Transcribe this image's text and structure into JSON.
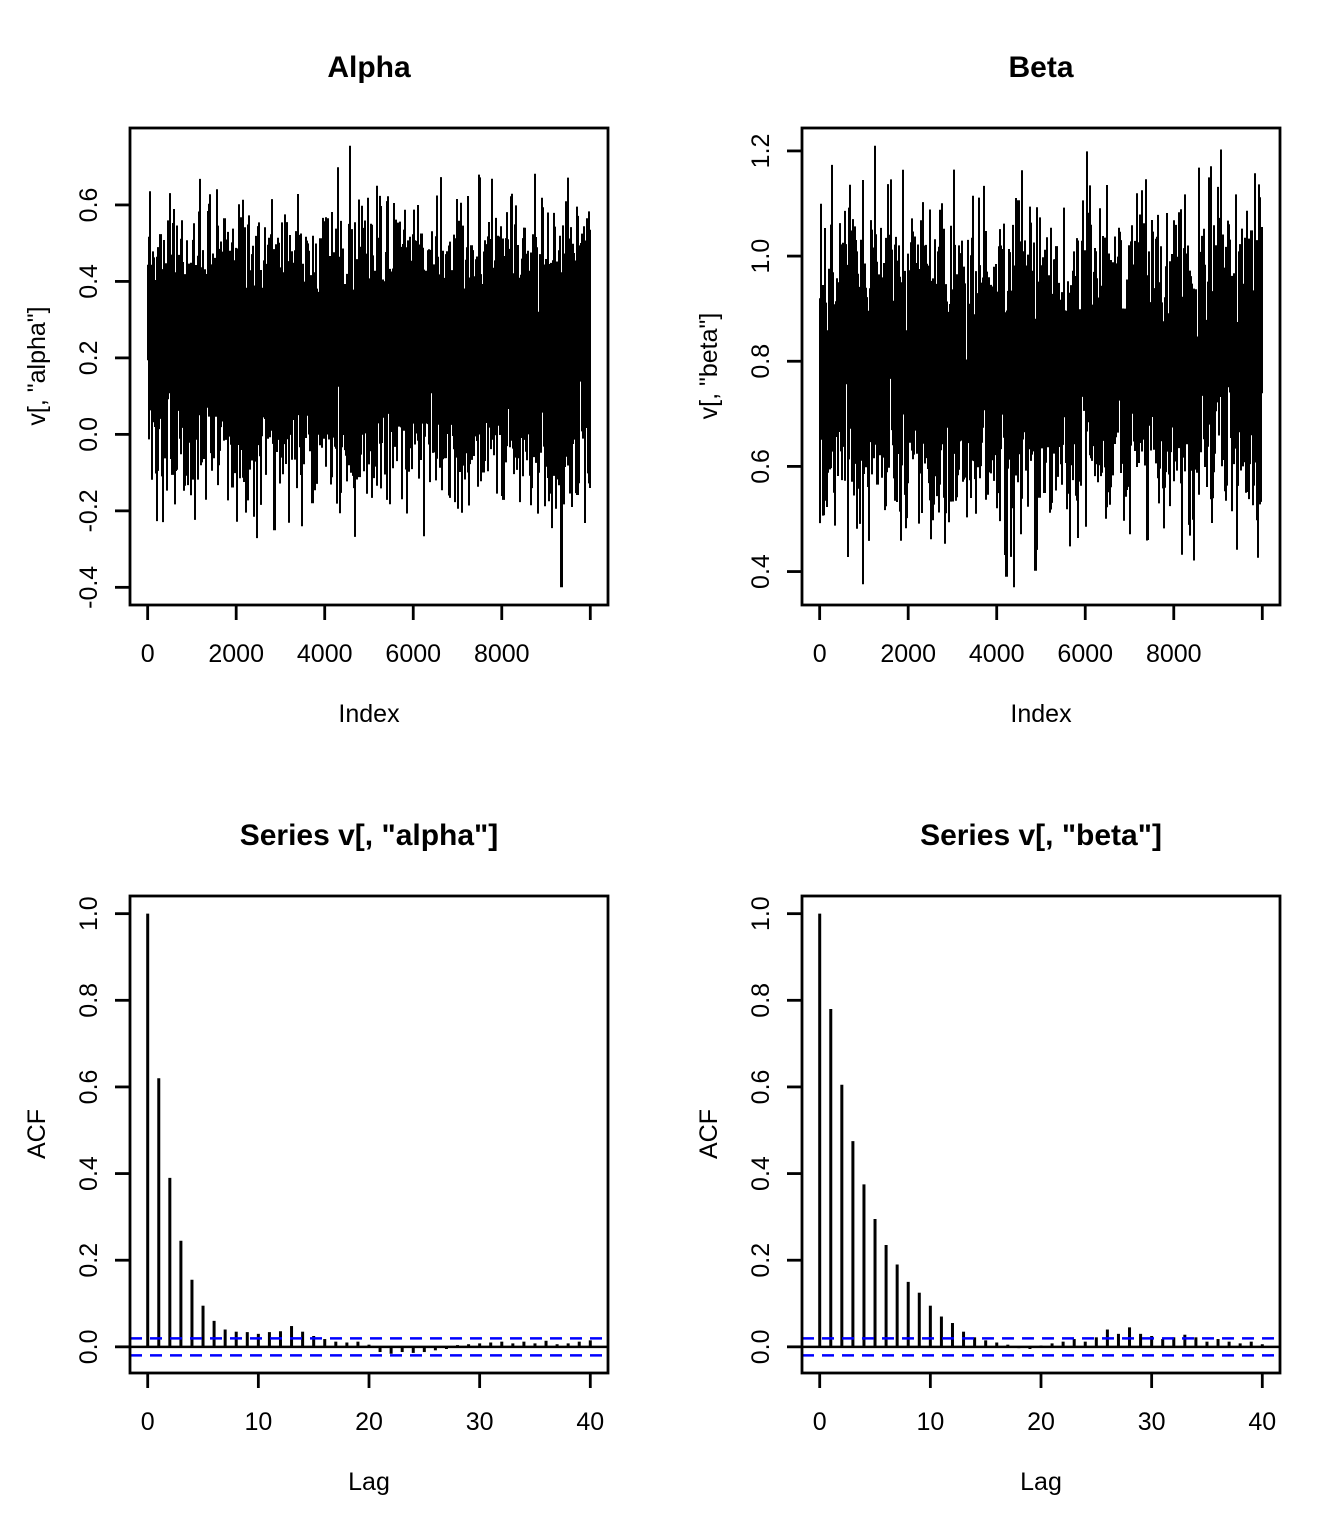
{
  "figure": {
    "background": "#ffffff",
    "colors": {
      "plot_ink": "#000000",
      "ci_line": "#0000ff"
    },
    "layout_note": "2x2 grid of R base-graphics plots: two MCMC trace plots (top) and their autocorrelation plots (bottom)"
  },
  "chart_data": [
    {
      "id": "alpha-trace",
      "type": "line",
      "title": "Alpha",
      "xlabel": "Index",
      "ylabel": "v[, \"alpha\"]",
      "x_range": [
        1,
        10000
      ],
      "y_range": [
        -0.4,
        0.755
      ],
      "x_ticks": {
        "values": [
          0,
          2000,
          4000,
          6000,
          8000,
          10000
        ],
        "labels": [
          "0",
          "2000",
          "4000",
          "6000",
          "8000",
          ""
        ]
      },
      "y_ticks": {
        "values": [
          -0.4,
          -0.2,
          0.0,
          0.2,
          0.4,
          0.6
        ],
        "labels": [
          "-0.4",
          "-0.2",
          "0.0",
          "0.2",
          "0.4",
          "0.6"
        ]
      },
      "n_points": 10000,
      "generator": {
        "kind": "ar1",
        "mean": 0.18,
        "sd": 0.165,
        "ar1": 0.62,
        "seed": 20240
      }
    },
    {
      "id": "beta-trace",
      "type": "line",
      "title": "Beta",
      "xlabel": "Index",
      "ylabel": "v[, \"beta\"]",
      "x_range": [
        1,
        10000
      ],
      "y_range": [
        0.37,
        1.21
      ],
      "x_ticks": {
        "values": [
          0,
          2000,
          4000,
          6000,
          8000,
          10000
        ],
        "labels": [
          "0",
          "2000",
          "4000",
          "6000",
          "8000",
          ""
        ]
      },
      "y_ticks": {
        "values": [
          0.4,
          0.6,
          0.8,
          1.0,
          1.2
        ],
        "labels": [
          "0.4",
          "0.6",
          "0.8",
          "1.0",
          "1.2"
        ]
      },
      "n_points": 10000,
      "generator": {
        "kind": "ar1",
        "mean": 0.76,
        "sd": 0.12,
        "ar1": 0.78,
        "seed": 77130
      }
    },
    {
      "id": "alpha-acf",
      "type": "bar",
      "title": "Series  v[, \"alpha\"]",
      "xlabel": "Lag",
      "ylabel": "ACF",
      "x_range": [
        0,
        40
      ],
      "x_ticks": {
        "values": [
          0,
          10,
          20,
          30,
          40
        ],
        "labels": [
          "0",
          "10",
          "20",
          "30",
          "40"
        ]
      },
      "y_ticks": {
        "values": [
          0.0,
          0.2,
          0.4,
          0.6,
          0.8,
          1.0
        ],
        "labels": [
          "0.0",
          "0.2",
          "0.4",
          "0.6",
          "0.8",
          "1.0"
        ]
      },
      "ci": 0.0196,
      "lags": [
        0,
        1,
        2,
        3,
        4,
        5,
        6,
        7,
        8,
        9,
        10,
        11,
        12,
        13,
        14,
        15,
        16,
        17,
        18,
        19,
        20,
        21,
        22,
        23,
        24,
        25,
        26,
        27,
        28,
        29,
        30,
        31,
        32,
        33,
        34,
        35,
        36,
        37,
        38,
        39,
        40
      ],
      "values": [
        1.0,
        0.62,
        0.39,
        0.245,
        0.155,
        0.095,
        0.06,
        0.04,
        0.035,
        0.034,
        0.03,
        0.034,
        0.036,
        0.048,
        0.035,
        0.025,
        0.018,
        0.012,
        0.01,
        0.012,
        0.005,
        -0.012,
        -0.016,
        -0.012,
        -0.014,
        -0.012,
        -0.008,
        -0.005,
        0.004,
        0.006,
        0.008,
        0.01,
        0.012,
        0.008,
        0.012,
        0.008,
        0.014,
        0.006,
        0.008,
        0.012,
        0.015
      ]
    },
    {
      "id": "beta-acf",
      "type": "bar",
      "title": "Series  v[, \"beta\"]",
      "xlabel": "Lag",
      "ylabel": "ACF",
      "x_range": [
        0,
        40
      ],
      "x_ticks": {
        "values": [
          0,
          10,
          20,
          30,
          40
        ],
        "labels": [
          "0",
          "10",
          "20",
          "30",
          "40"
        ]
      },
      "y_ticks": {
        "values": [
          0.0,
          0.2,
          0.4,
          0.6,
          0.8,
          1.0
        ],
        "labels": [
          "0.0",
          "0.2",
          "0.4",
          "0.6",
          "0.8",
          "1.0"
        ]
      },
      "ci": 0.0196,
      "lags": [
        0,
        1,
        2,
        3,
        4,
        5,
        6,
        7,
        8,
        9,
        10,
        11,
        12,
        13,
        14,
        15,
        16,
        17,
        18,
        19,
        20,
        21,
        22,
        23,
        24,
        25,
        26,
        27,
        28,
        29,
        30,
        31,
        32,
        33,
        34,
        35,
        36,
        37,
        38,
        39,
        40
      ],
      "values": [
        1.0,
        0.78,
        0.605,
        0.475,
        0.375,
        0.295,
        0.235,
        0.19,
        0.15,
        0.125,
        0.095,
        0.07,
        0.055,
        0.035,
        0.022,
        0.015,
        0.01,
        0.005,
        -0.003,
        -0.005,
        0.003,
        0.008,
        0.012,
        0.018,
        0.012,
        0.022,
        0.04,
        0.03,
        0.045,
        0.03,
        0.025,
        0.018,
        0.022,
        0.028,
        0.022,
        0.012,
        0.018,
        0.012,
        0.008,
        0.012,
        0.006
      ]
    }
  ]
}
